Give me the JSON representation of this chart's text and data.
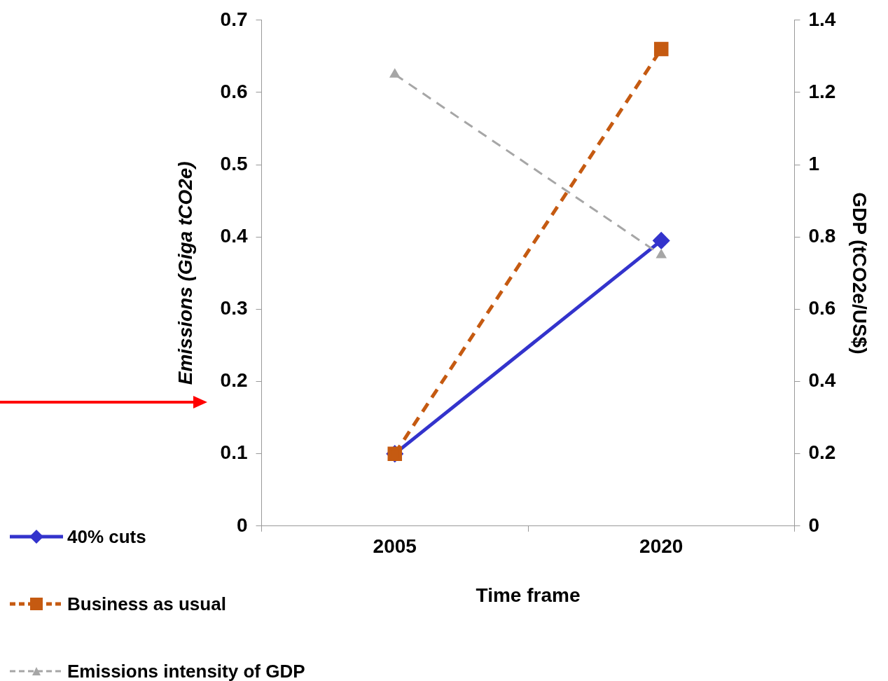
{
  "chart_data": {
    "type": "line",
    "xlabel": "Time frame",
    "ylabel": "Emissions (Giga tCO2e)",
    "y2label": "GDP (tCO2e/US$)",
    "categories": [
      "2005",
      "2020"
    ],
    "series": [
      {
        "name": "40% cuts",
        "color": "#3333cc",
        "values": [
          0.1,
          0.395
        ],
        "marker": "diamond",
        "line_style": "solid"
      },
      {
        "name": "Business as usual",
        "color": "#c55a11",
        "values": [
          0.1,
          0.66
        ],
        "marker": "square",
        "line_style": "dashed"
      },
      {
        "name": "Emissions intensity of GDP",
        "color": "#a6a6a6",
        "values": [
          1.25,
          0.75
        ],
        "marker": "triangle",
        "line_style": "dashed",
        "axis": "y2"
      }
    ],
    "ylim": [
      0,
      0.7
    ],
    "yticks": [
      0,
      0.1,
      0.2,
      0.3,
      0.4,
      0.5,
      0.6,
      0.7
    ],
    "y2lim": [
      0,
      1.4
    ],
    "y2ticks": [
      0,
      0.2,
      0.4,
      0.6,
      0.8,
      1,
      1.2,
      1.4
    ],
    "grid": false,
    "legend": "bottom left"
  }
}
